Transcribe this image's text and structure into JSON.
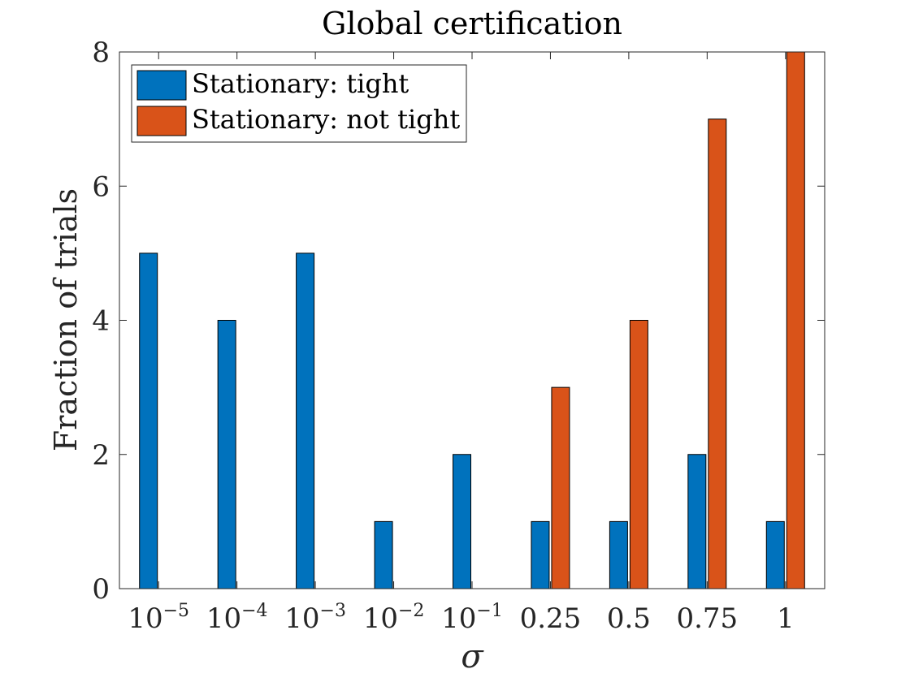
{
  "chart_data": {
    "type": "bar",
    "title": "Global certification",
    "xlabel": "σ",
    "ylabel": "Fraction of trials",
    "ylim": [
      0,
      8
    ],
    "yticks": [
      0,
      2,
      4,
      6,
      8
    ],
    "grid": false,
    "legend_position": "top-left",
    "categories": [
      {
        "base": "10",
        "exp": "−5"
      },
      {
        "base": "10",
        "exp": "−4"
      },
      {
        "base": "10",
        "exp": "−3"
      },
      {
        "base": "10",
        "exp": "−2"
      },
      {
        "base": "10",
        "exp": "−1"
      },
      {
        "base": "0.25",
        "exp": ""
      },
      {
        "base": "0.5",
        "exp": ""
      },
      {
        "base": "0.75",
        "exp": ""
      },
      {
        "base": "1",
        "exp": ""
      }
    ],
    "series": [
      {
        "name": "Stationary: tight",
        "color": "#0072BD",
        "values": [
          5,
          4,
          5,
          1,
          2,
          1,
          1,
          2,
          1
        ]
      },
      {
        "name": "Stationary: not tight",
        "color": "#D95319",
        "values": [
          0,
          0,
          0,
          0,
          0,
          3,
          4,
          7,
          8
        ]
      }
    ]
  }
}
